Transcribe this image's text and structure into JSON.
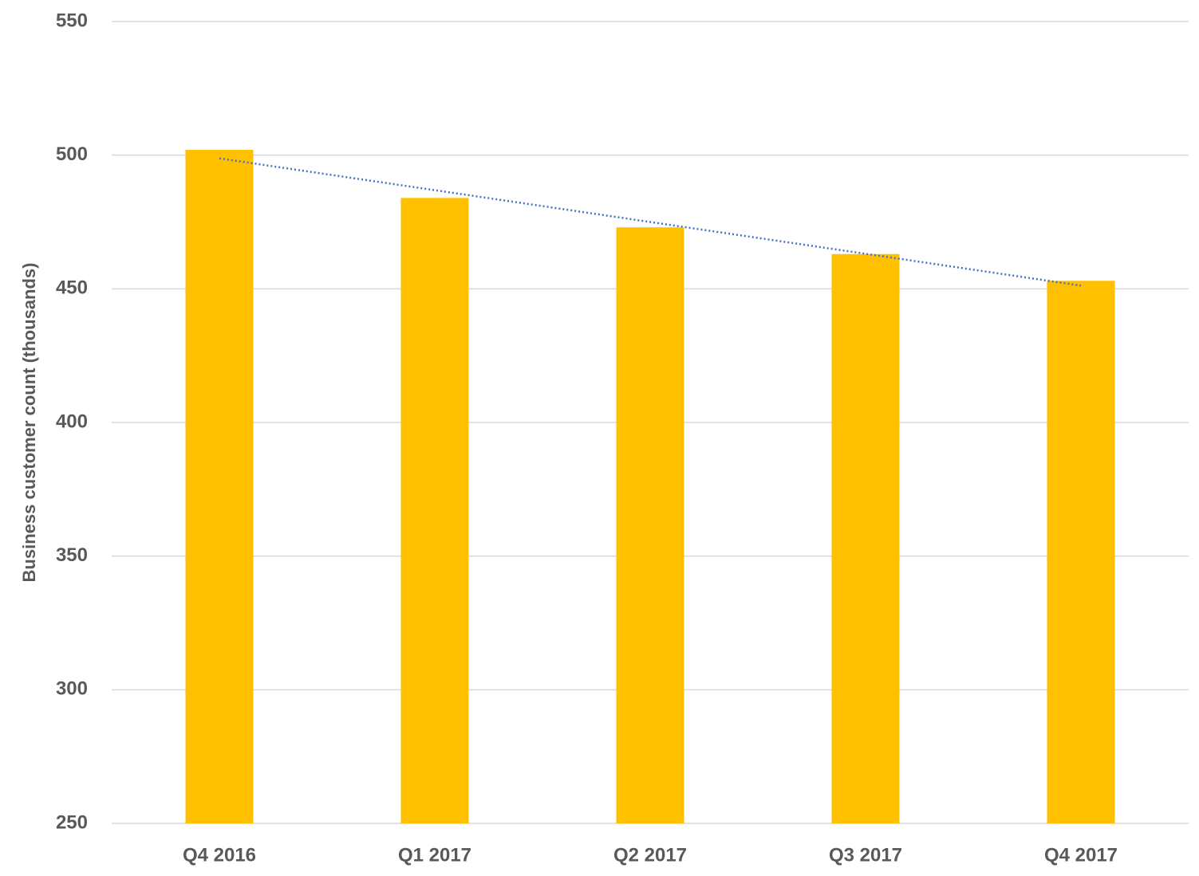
{
  "chart_data": {
    "type": "bar",
    "y_label": "Business customer count (thousands)",
    "categories": [
      "Q4 2016",
      "Q1 2017",
      "Q2 2017",
      "Q3 2017",
      "Q4 2017"
    ],
    "values": [
      502,
      484,
      473,
      463,
      453
    ],
    "color": "#ffc000",
    "ylim": [
      250,
      550
    ],
    "yticks": [
      250,
      300,
      350,
      400,
      450,
      500,
      550
    ],
    "grid": true,
    "trendline": {
      "type": "linear",
      "color": "#4472c4"
    }
  }
}
